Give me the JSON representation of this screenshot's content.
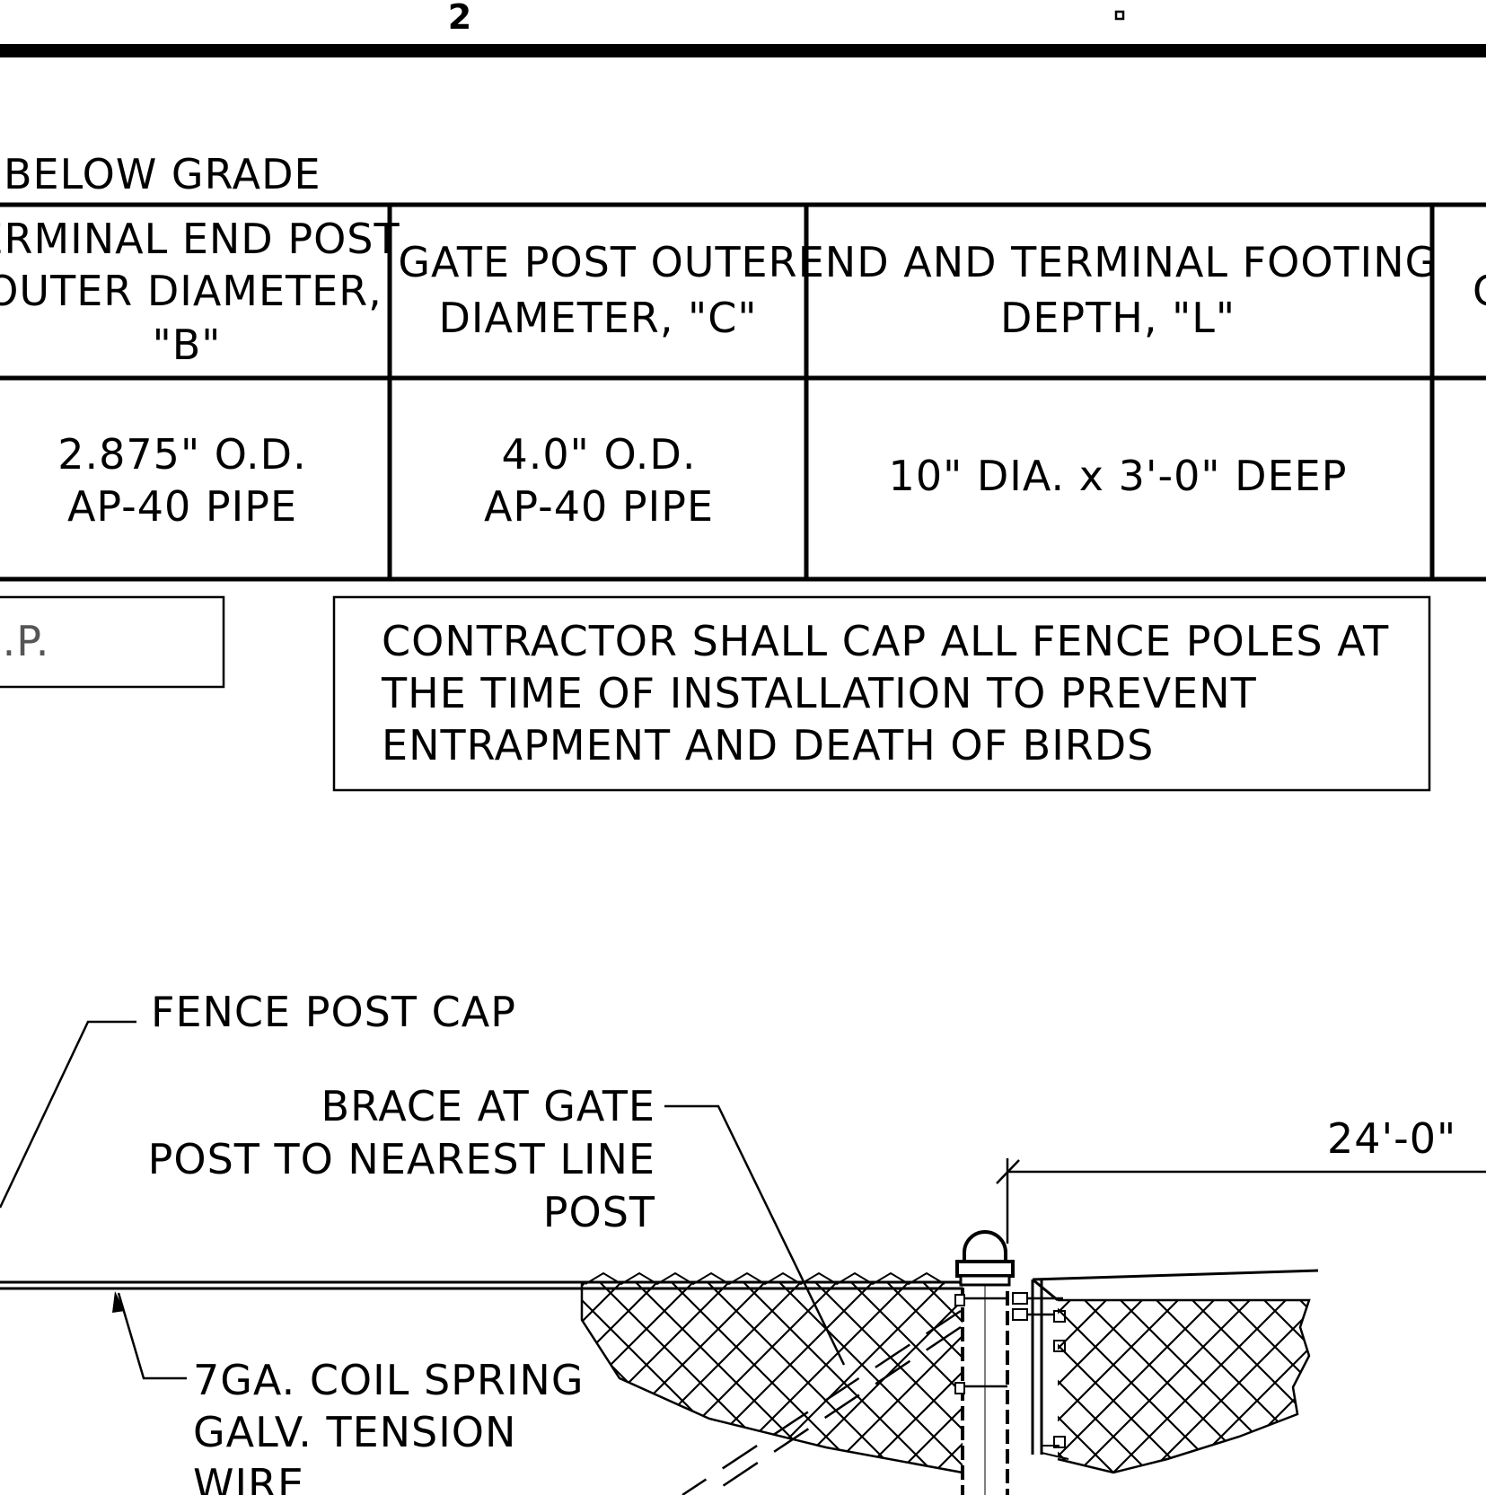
{
  "sheet": {
    "number": "2"
  },
  "table": {
    "caption": "BELOW GRADE",
    "headers": [
      [
        "ERMINAL END POST",
        "OUTER DIAMETER,",
        "\"B\""
      ],
      [
        "GATE POST OUTER",
        "DIAMETER, \"C\""
      ],
      [
        "END AND TERMINAL FOOTING",
        "DEPTH, \"L\""
      ],
      [
        "C"
      ]
    ],
    "row": [
      [
        "2.875\" O.D.",
        "AP-40 PIPE"
      ],
      [
        "4.0\" O.D.",
        "AP-40 PIPE"
      ],
      [
        "10\" DIA. x 3'-0\" DEEP"
      ]
    ]
  },
  "notes": {
    "tup_box": "J.P.",
    "cap_note": [
      "CONTRACTOR SHALL CAP ALL FENCE POLES AT",
      "THE TIME OF INSTALLATION TO PREVENT",
      "ENTRAPMENT AND DEATH OF BIRDS"
    ]
  },
  "callouts": {
    "post_cap": "FENCE POST CAP",
    "brace": [
      "BRACE AT GATE",
      "POST TO NEAREST LINE",
      "POST"
    ],
    "tension_wire": [
      "7GA. COIL SPRING",
      "GALV. TENSION",
      "WIRE"
    ],
    "dimension": "24'-0\""
  }
}
